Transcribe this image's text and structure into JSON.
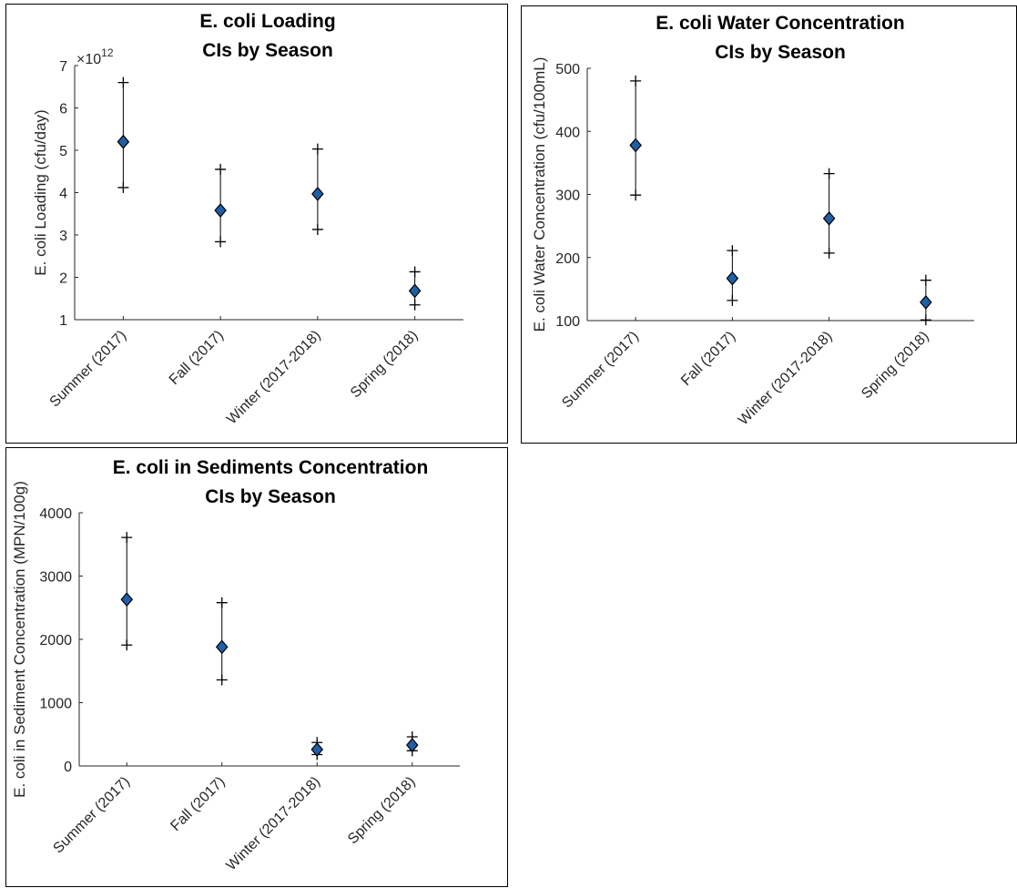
{
  "chart_data": [
    {
      "type": "scatter",
      "title": [
        "E. coli Loading",
        "CIs by Season"
      ],
      "ylabel": "E. coli Loading (cfu/day)",
      "y_exponent_label": "×10",
      "y_exponent": "12",
      "categories": [
        "Summer (2017)",
        "Fall (2017)",
        "Winter (2017-2018)",
        "Spring (2018)"
      ],
      "ylim": [
        1,
        7
      ],
      "yticks": [
        1,
        2,
        3,
        4,
        5,
        6,
        7
      ],
      "series": [
        {
          "values": [
            5.2,
            3.58,
            3.97,
            1.68
          ],
          "lower": [
            4.12,
            2.84,
            3.13,
            1.35
          ],
          "upper": [
            6.6,
            4.55,
            5.03,
            2.13
          ]
        }
      ],
      "marker": "diamond",
      "marker_color": "#1f5fa8"
    },
    {
      "type": "scatter",
      "title": [
        "E. coli Water Concentration",
        "CIs by Season"
      ],
      "ylabel": "E. coli Water Concentration (cfu/100mL)",
      "categories": [
        "Summer (2017)",
        "Fall (2017)",
        "Winter (2017-2018)",
        "Spring (2018)"
      ],
      "ylim": [
        100,
        500
      ],
      "yticks": [
        100,
        200,
        300,
        400,
        500
      ],
      "series": [
        {
          "values": [
            378,
            167,
            262,
            129
          ],
          "lower": [
            299,
            132,
            207,
            101
          ],
          "upper": [
            480,
            211,
            333,
            164
          ]
        }
      ],
      "marker": "diamond",
      "marker_color": "#1f5fa8"
    },
    {
      "type": "scatter",
      "title": [
        "E. coli in Sediments Concentration",
        "CIs by Season"
      ],
      "ylabel": "E. coli in Sediment Concentration (MPN/100g)",
      "categories": [
        "Summer (2017)",
        "Fall (2017)",
        "Winter (2017-2018)",
        "Spring (2018)"
      ],
      "ylim": [
        0,
        4000
      ],
      "yticks": [
        0,
        1000,
        2000,
        3000,
        4000
      ],
      "series": [
        {
          "values": [
            2630,
            1880,
            260,
            330
          ],
          "lower": [
            1910,
            1360,
            180,
            240
          ],
          "upper": [
            3610,
            2580,
            370,
            460
          ]
        }
      ],
      "marker": "diamond",
      "marker_color": "#1f5fa8"
    }
  ]
}
